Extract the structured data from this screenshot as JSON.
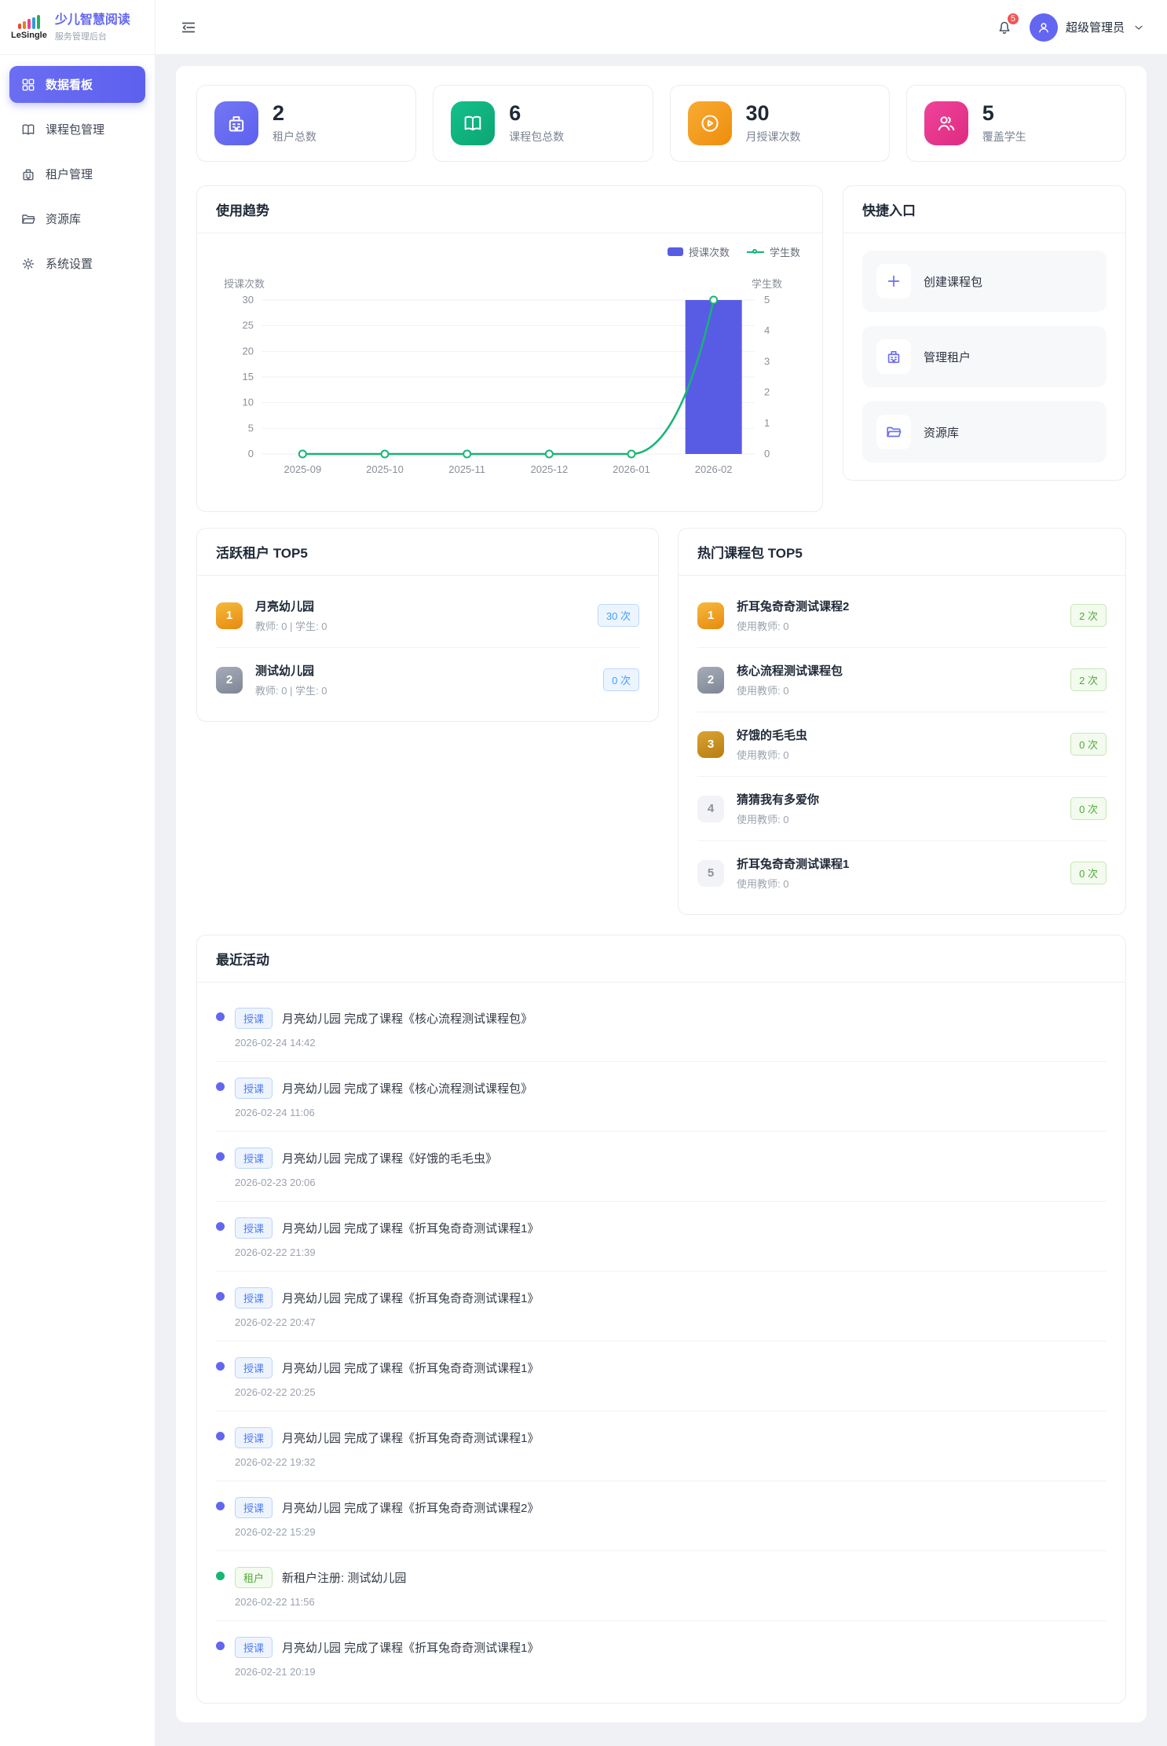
{
  "brand": {
    "logo_text": "LeSingle",
    "title": "少儿智慧阅读",
    "subtitle": "服务管理后台"
  },
  "sidebar": {
    "items": [
      {
        "label": "数据看板",
        "icon": "dashboard",
        "variant": "active"
      },
      {
        "label": "课程包管理",
        "icon": "package"
      },
      {
        "label": "租户管理",
        "icon": "tenant"
      },
      {
        "label": "资源库",
        "icon": "resource"
      },
      {
        "label": "系统设置",
        "icon": "settings"
      }
    ]
  },
  "header": {
    "notification_count": "5",
    "user_name": "超级管理员"
  },
  "stats": [
    {
      "value": "2",
      "label": "租户总数",
      "icon": "building",
      "variant": "c-purple"
    },
    {
      "value": "6",
      "label": "课程包总数",
      "icon": "book",
      "variant": "c-green"
    },
    {
      "value": "30",
      "label": "月授课次数",
      "icon": "play",
      "variant": "c-orange"
    },
    {
      "value": "5",
      "label": "覆盖学生",
      "icon": "users",
      "variant": "c-pink"
    }
  ],
  "usage_trend": {
    "title": "使用趋势",
    "legend": {
      "bar_label": "授课次数",
      "line_label": "学生数"
    },
    "chart_data": {
      "type": "bar+line",
      "categories": [
        "2025-09",
        "2025-10",
        "2025-11",
        "2025-12",
        "2026-01",
        "2026-02"
      ],
      "series": [
        {
          "name": "授课次数",
          "type": "bar",
          "axis": "left",
          "values": [
            0,
            0,
            0,
            0,
            0,
            30
          ]
        },
        {
          "name": "学生数",
          "type": "line",
          "axis": "right",
          "values": [
            0,
            0,
            0,
            0,
            0,
            5
          ]
        }
      ],
      "left_axis": {
        "label": "授课次数",
        "min": 0,
        "max": 30,
        "step": 5
      },
      "right_axis": {
        "label": "学生数",
        "min": 0,
        "max": 5,
        "step": 1
      },
      "grid": true,
      "legend_position": "top-right",
      "colors": {
        "bar": "#585ce5",
        "line": "#17b573",
        "axis_text": "#8a8f99",
        "grid": "#f0f1f4"
      }
    }
  },
  "quick_entry": {
    "title": "快捷入口",
    "items": [
      {
        "label": "创建课程包",
        "icon": "plus"
      },
      {
        "label": "管理租户",
        "icon": "tenant"
      },
      {
        "label": "资源库",
        "icon": "resource"
      }
    ]
  },
  "active_tenants": {
    "title": "活跃租户 TOP5",
    "items": [
      {
        "rank": "1",
        "name": "月亮幼儿园",
        "meta": "教师: 0 | 学生: 0",
        "count": "30 次",
        "variant": "rank-1"
      },
      {
        "rank": "2",
        "name": "测试幼儿园",
        "meta": "教师: 0 | 学生: 0",
        "count": "0 次",
        "variant": "rank-2"
      }
    ]
  },
  "hot_packages": {
    "title": "热门课程包 TOP5",
    "items": [
      {
        "rank": "1",
        "name": "折耳兔奇奇测试课程2",
        "meta": "使用教师: 0",
        "count": "2 次",
        "variant": "rank-1"
      },
      {
        "rank": "2",
        "name": "核心流程测试课程包",
        "meta": "使用教师: 0",
        "count": "2 次",
        "variant": "rank-2"
      },
      {
        "rank": "3",
        "name": "好饿的毛毛虫",
        "meta": "使用教师: 0",
        "count": "0 次",
        "variant": "rank-3"
      },
      {
        "rank": "4",
        "name": "猜猜我有多爱你",
        "meta": "使用教师: 0",
        "count": "0 次",
        "variant": "rank-4"
      },
      {
        "rank": "5",
        "name": "折耳兔奇奇测试课程1",
        "meta": "使用教师: 0",
        "count": "0 次",
        "variant": "rank-5"
      }
    ]
  },
  "recent_activity": {
    "title": "最近活动",
    "items": [
      {
        "tag": "授课",
        "text": "月亮幼儿园 完成了课程《核心流程测试课程包》",
        "time": "2026-02-24 14:42",
        "variant": "course"
      },
      {
        "tag": "授课",
        "text": "月亮幼儿园 完成了课程《核心流程测试课程包》",
        "time": "2026-02-24 11:06",
        "variant": "course"
      },
      {
        "tag": "授课",
        "text": "月亮幼儿园 完成了课程《好饿的毛毛虫》",
        "time": "2026-02-23 20:06",
        "variant": "course"
      },
      {
        "tag": "授课",
        "text": "月亮幼儿园 完成了课程《折耳兔奇奇测试课程1》",
        "time": "2026-02-22 21:39",
        "variant": "course"
      },
      {
        "tag": "授课",
        "text": "月亮幼儿园 完成了课程《折耳兔奇奇测试课程1》",
        "time": "2026-02-22 20:47",
        "variant": "course"
      },
      {
        "tag": "授课",
        "text": "月亮幼儿园 完成了课程《折耳兔奇奇测试课程1》",
        "time": "2026-02-22 20:25",
        "variant": "course"
      },
      {
        "tag": "授课",
        "text": "月亮幼儿园 完成了课程《折耳兔奇奇测试课程1》",
        "time": "2026-02-22 19:32",
        "variant": "course"
      },
      {
        "tag": "授课",
        "text": "月亮幼儿园 完成了课程《折耳兔奇奇测试课程2》",
        "time": "2026-02-22 15:29",
        "variant": "course"
      },
      {
        "tag": "租户",
        "text": "新租户注册: 测试幼儿园",
        "time": "2026-02-22 11:56",
        "variant": "tenant"
      },
      {
        "tag": "授课",
        "text": "月亮幼儿园 完成了课程《折耳兔奇奇测试课程1》",
        "time": "2026-02-21 20:19",
        "variant": "course"
      }
    ]
  }
}
